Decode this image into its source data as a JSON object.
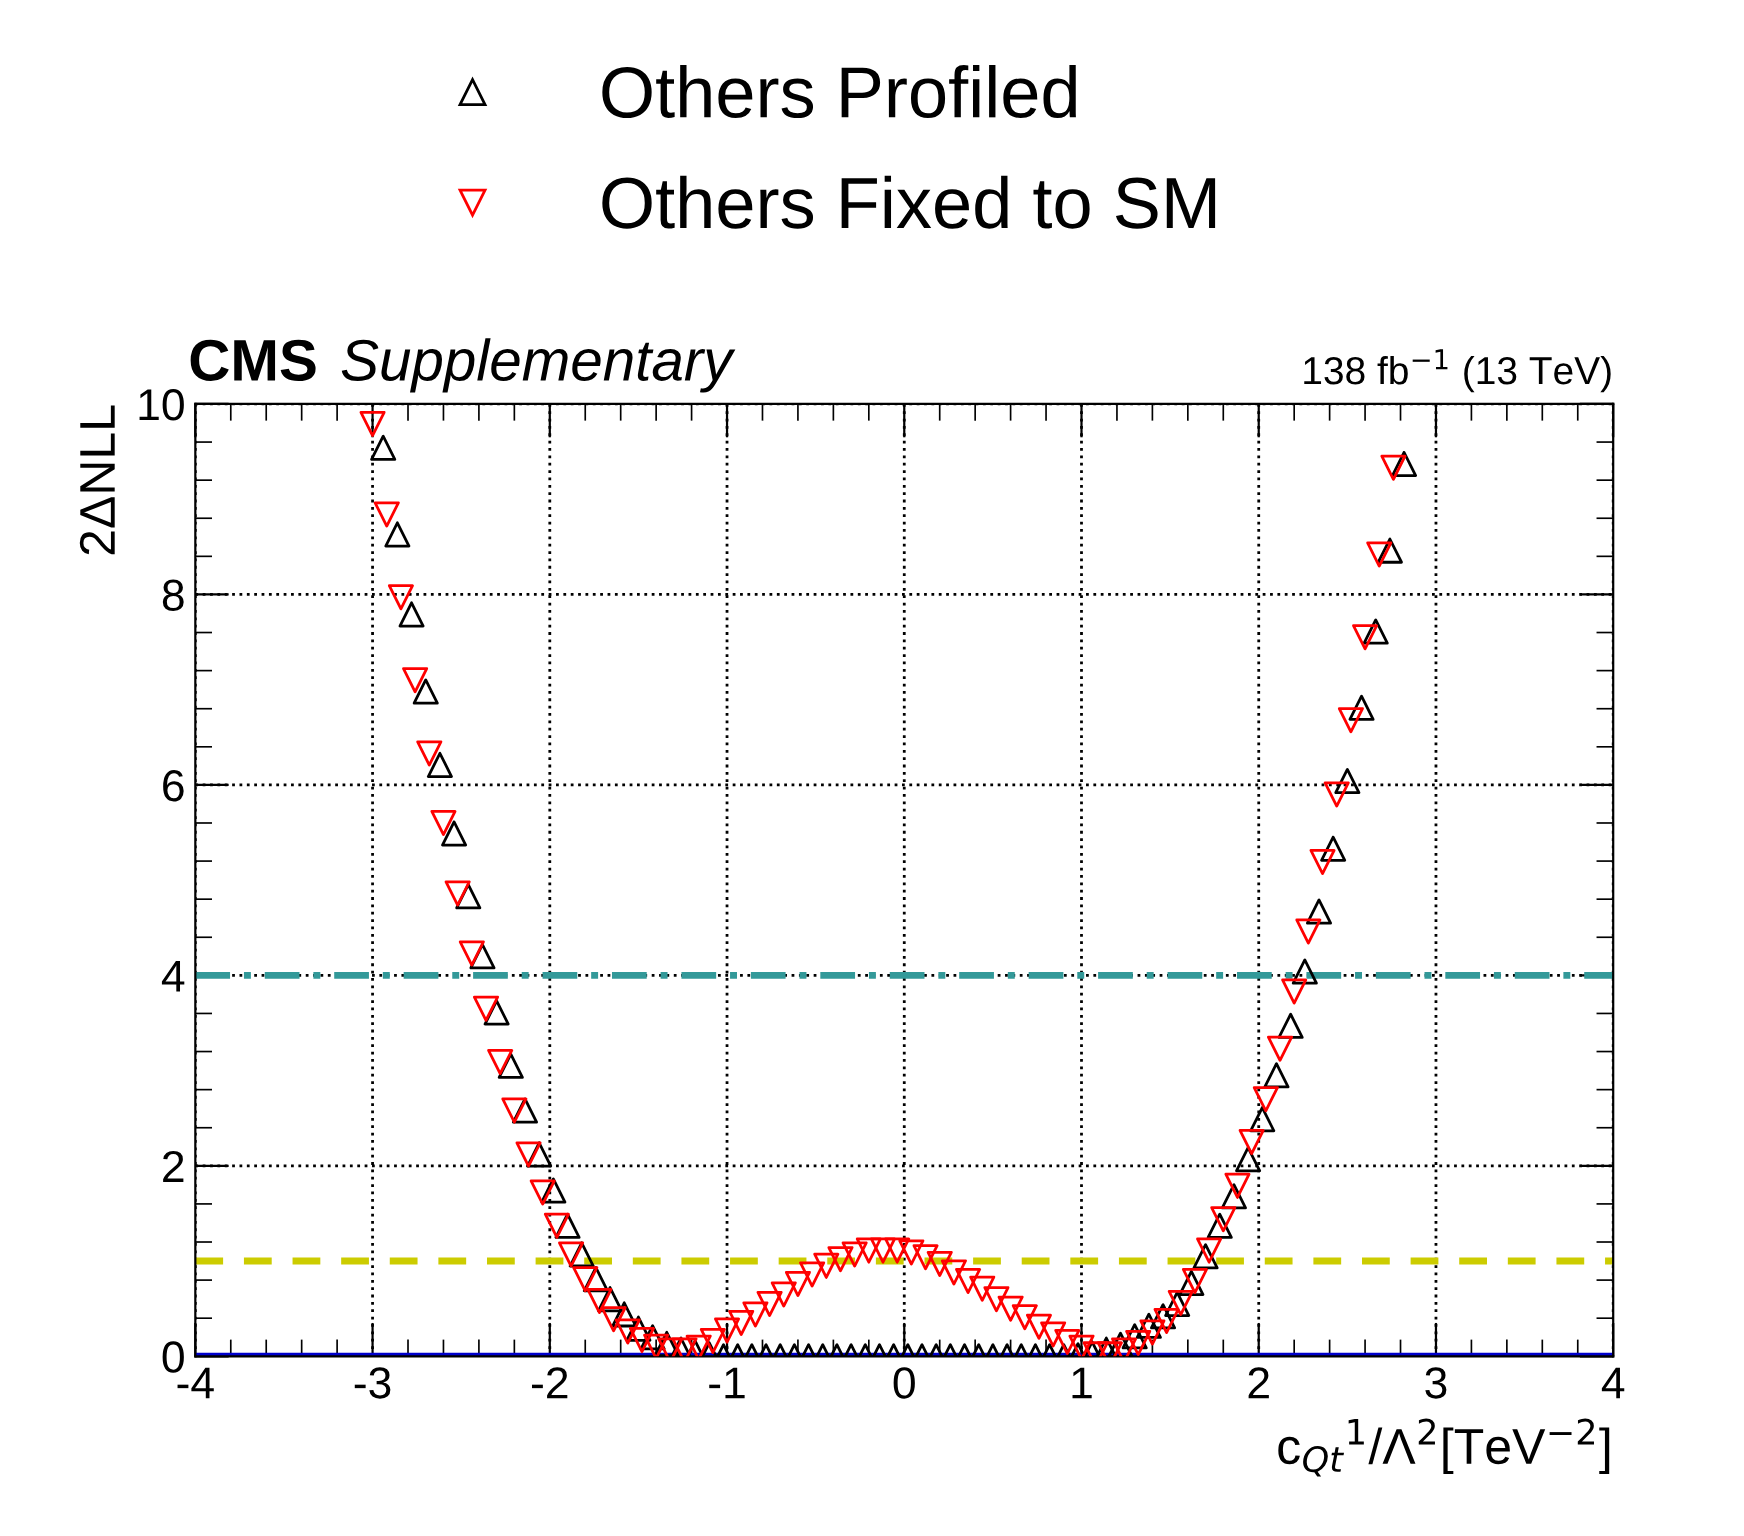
{
  "chart_data": {
    "type": "scatter",
    "title": "CMS",
    "subtitle": "Supplementary",
    "annotations": [
      "138 fb$^{−1}$ (13 TeV)"
    ],
    "xlabel": "c$_{Qt}$$^{1}$/Λ$^{2}$[TeV$^{−2}$]",
    "ylabel": "2ΔNLL",
    "xlim": [
      -4,
      4
    ],
    "ylim": [
      0,
      10
    ],
    "xticks": [
      -4,
      -3,
      -2,
      -1,
      0,
      1,
      2,
      3,
      4
    ],
    "yticks": [
      0,
      2,
      4,
      6,
      8,
      10
    ],
    "grid": true,
    "legend": "top",
    "ref_lines": [
      {
        "axis": "y",
        "value": 4,
        "label": null,
        "color": "#339999",
        "line_style": "dashdot"
      },
      {
        "axis": "y",
        "value": 1,
        "label": null,
        "color": "#cccc00",
        "line_style": "dashed"
      },
      {
        "axis": "y",
        "value": 0,
        "label": null,
        "color": "#0000cc",
        "line_style": "solid"
      }
    ],
    "series": [
      {
        "name": "Others Profiled",
        "color": "#000000",
        "marker": "triangle",
        "x": [
          -2.94,
          -2.86,
          -2.78,
          -2.7,
          -2.62,
          -2.54,
          -2.46,
          -2.38,
          -2.3,
          -2.22,
          -2.14,
          -2.06,
          -1.98,
          -1.9,
          -1.82,
          -1.74,
          -1.66,
          -1.58,
          -1.5,
          -1.42,
          -1.34,
          -1.26,
          -1.18,
          -1.1,
          -1.02,
          -0.94,
          -0.86,
          -0.78,
          -0.7,
          -0.62,
          -0.54,
          -0.46,
          -0.38,
          -0.3,
          -0.22,
          -0.14,
          -0.06,
          0.02,
          0.1,
          0.18,
          0.26,
          0.34,
          0.42,
          0.5,
          0.58,
          0.66,
          0.74,
          0.82,
          0.9,
          0.98,
          1.06,
          1.14,
          1.22,
          1.3,
          1.38,
          1.46,
          1.54,
          1.62,
          1.7,
          1.78,
          1.86,
          1.94,
          2.02,
          2.1,
          2.18,
          2.26,
          2.34,
          2.42,
          2.5,
          2.58,
          2.66,
          2.74,
          2.82
        ],
        "values": [
          9.54,
          8.63,
          7.79,
          6.98,
          6.21,
          5.49,
          4.83,
          4.2,
          3.61,
          3.05,
          2.58,
          2.12,
          1.74,
          1.37,
          1.07,
          0.81,
          0.6,
          0.44,
          0.29,
          0.2,
          0.13,
          0.07,
          0.04,
          0.02,
          0,
          0,
          0,
          0,
          0,
          0,
          0,
          0,
          0,
          0,
          0,
          0,
          0,
          0,
          0,
          0,
          0,
          0,
          0,
          0,
          0,
          0,
          0,
          0,
          0,
          0.01,
          0.03,
          0.07,
          0.12,
          0.21,
          0.32,
          0.42,
          0.55,
          0.77,
          1.05,
          1.37,
          1.68,
          2.07,
          2.49,
          2.95,
          3.47,
          4.04,
          4.67,
          5.33,
          6.04,
          6.81,
          7.61,
          8.46,
          9.37
        ]
      },
      {
        "name": "Others Fixed to SM",
        "color": "#ff0000",
        "marker": "triangle_down",
        "x": [
          -3,
          -2.92,
          -2.84,
          -2.76,
          -2.68,
          -2.6,
          -2.52,
          -2.44,
          -2.36,
          -2.28,
          -2.2,
          -2.12,
          -2.04,
          -1.96,
          -1.88,
          -1.8,
          -1.72,
          -1.64,
          -1.56,
          -1.48,
          -1.4,
          -1.32,
          -1.24,
          -1.16,
          -1.08,
          -1,
          -0.92,
          -0.84,
          -0.76,
          -0.68,
          -0.6,
          -0.52,
          -0.44,
          -0.36,
          -0.28,
          -0.2,
          -0.12,
          -0.04,
          0.04,
          0.12,
          0.2,
          0.28,
          0.36,
          0.44,
          0.52,
          0.6,
          0.68,
          0.76,
          0.84,
          0.92,
          1,
          1.08,
          1.16,
          1.24,
          1.32,
          1.4,
          1.48,
          1.56,
          1.64,
          1.72,
          1.8,
          1.88,
          1.96,
          2.04,
          2.12,
          2.2,
          2.28,
          2.36,
          2.44,
          2.52,
          2.6,
          2.68,
          2.76
        ],
        "values": [
          9.79,
          8.84,
          7.97,
          7.1,
          6.33,
          5.6,
          4.86,
          4.23,
          3.65,
          3.09,
          2.58,
          2.12,
          1.72,
          1.37,
          1.07,
          0.81,
          0.58,
          0.39,
          0.26,
          0.17,
          0.1,
          0.06,
          0.06,
          0.09,
          0.16,
          0.27,
          0.35,
          0.44,
          0.55,
          0.65,
          0.76,
          0.86,
          0.95,
          1.02,
          1.07,
          1.11,
          1.11,
          1.11,
          1.09,
          1.04,
          0.97,
          0.88,
          0.79,
          0.71,
          0.6,
          0.5,
          0.41,
          0.31,
          0.23,
          0.15,
          0.09,
          0.02,
          0.02,
          0.06,
          0.14,
          0.25,
          0.37,
          0.56,
          0.79,
          1.11,
          1.44,
          1.79,
          2.25,
          2.7,
          3.23,
          3.83,
          4.46,
          5.19,
          5.9,
          6.68,
          7.55,
          8.42,
          9.33
        ]
      }
    ]
  }
}
